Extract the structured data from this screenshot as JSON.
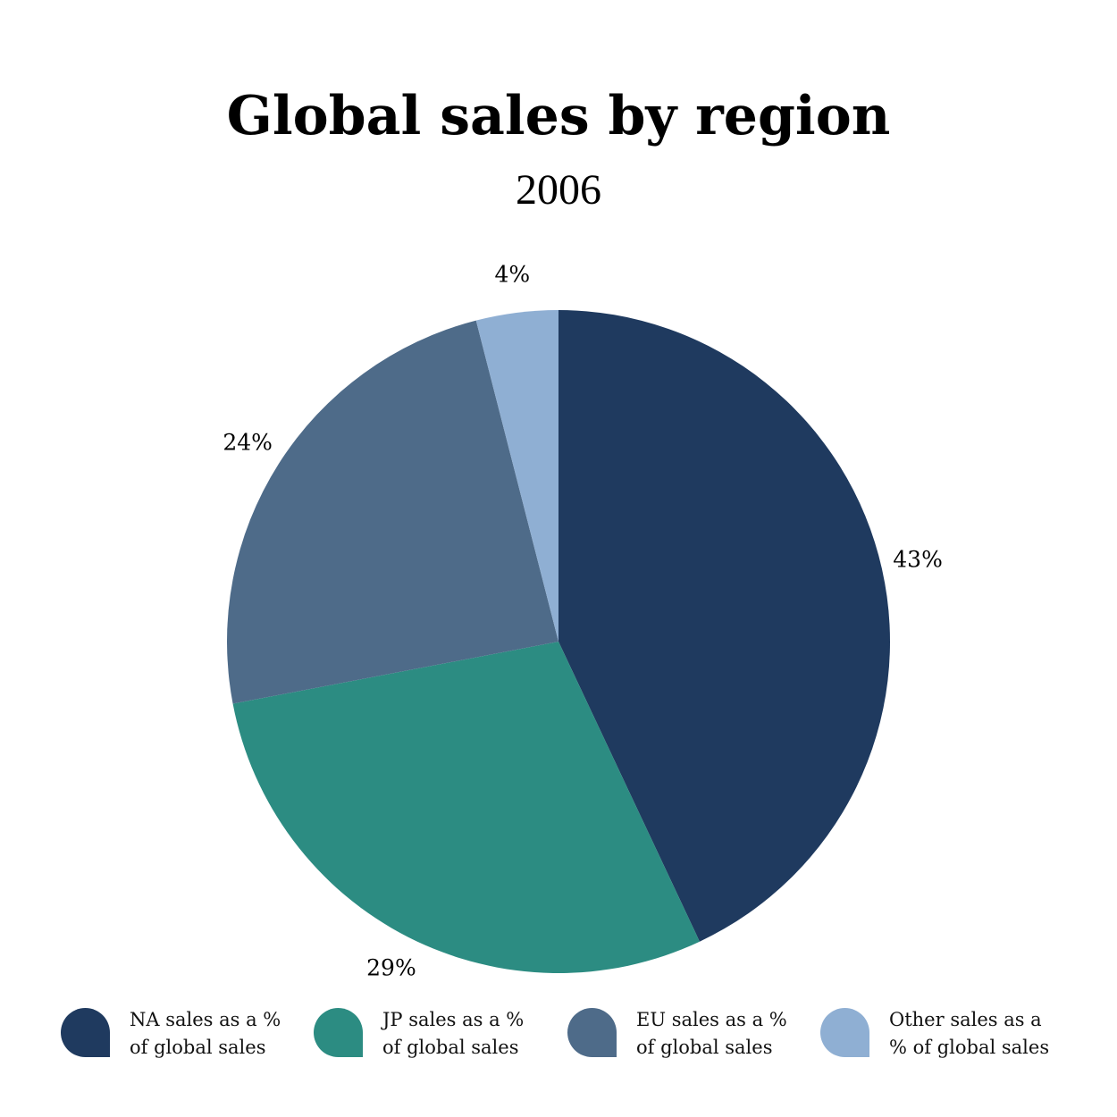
{
  "chart_data": {
    "type": "pie",
    "title": "Global sales by region",
    "subtitle": "2006",
    "series": [
      {
        "name": "NA sales as a % of global sales",
        "color": "#1f3a5f"
      },
      {
        "name": "JP sales as a % of global sales",
        "color": "#2c8c82"
      },
      {
        "name": "EU sales as a % of global sales",
        "color": "#4e6b89"
      },
      {
        "name": "Other sales as a % of global sales",
        "color": "#8fafd3"
      }
    ],
    "values": [
      43,
      29,
      24,
      4
    ],
    "value_labels": [
      "43%",
      "29%",
      "24%",
      "4%"
    ]
  }
}
